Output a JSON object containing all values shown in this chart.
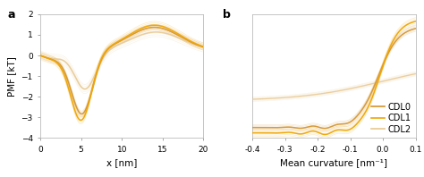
{
  "panel_a": {
    "title": "a",
    "xlabel": "x [nm]",
    "ylabel": "PMF [kT]",
    "xlim": [
      0,
      20
    ],
    "ylim": [
      -4,
      2
    ],
    "yticks": [
      -4,
      -3,
      -2,
      -1,
      0,
      1,
      2
    ],
    "xticks": [
      0,
      5,
      10,
      15,
      20
    ],
    "cdl0_color": "#d4922a",
    "cdl1_color": "#f0a500",
    "cdl2_color": "#e8c890"
  },
  "panel_b": {
    "title": "b",
    "xlabel": "Mean curvature [nm⁻¹]",
    "xlim": [
      -0.4,
      0.1
    ],
    "xticks": [
      -0.4,
      -0.3,
      -0.2,
      -0.1,
      0.0,
      0.1
    ],
    "cdl0_color": "#d4922a",
    "cdl1_color": "#f0a500",
    "cdl2_color": "#e8c890",
    "legend_labels": [
      "CDL0",
      "CDL1",
      "CDL2"
    ]
  },
  "background_color": "#ffffff",
  "tick_fontsize": 6.5,
  "label_fontsize": 7.5,
  "legend_fontsize": 7
}
